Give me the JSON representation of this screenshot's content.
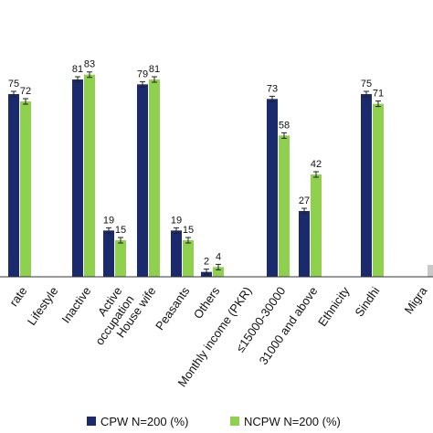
{
  "chart_data": {
    "type": "bar",
    "ylim": [
      0,
      100
    ],
    "grid": false,
    "legend_position": "bottom",
    "colors": {
      "cpw": "#1a2a6c",
      "ncpw": "#8fd14f",
      "axis": "#333333",
      "partial_bar": "#c8c8c8"
    },
    "categories": [
      "rate",
      "Lifestyle",
      "Inactive",
      "Active occupation",
      "House wife",
      "Peasants",
      "Others",
      "Monthly income (PKR)",
      "≤15000-30000",
      "31000 and above",
      "Ethnicity",
      "Sindhi",
      "Migra"
    ],
    "series": [
      {
        "name": "CPW N=200 (%)",
        "values": [
          75,
          null,
          81,
          19,
          79,
          19,
          2,
          null,
          73,
          27,
          null,
          75,
          null
        ]
      },
      {
        "name": "NCPW N=200 (%)",
        "values": [
          72,
          null,
          83,
          15,
          81,
          15,
          4,
          null,
          58,
          42,
          null,
          71,
          null
        ]
      }
    ],
    "tick_labels": [
      {
        "text": "rate"
      },
      {
        "text": "Lifestyle"
      },
      {
        "text": "Inactive"
      },
      {
        "text": "Active\noccupation"
      },
      {
        "text": "House wife"
      },
      {
        "text": "Peasants"
      },
      {
        "text": "Others"
      },
      {
        "text": "Monthly income (PKR)"
      },
      {
        "text": "≤15000-30000"
      },
      {
        "text": "31000 and above"
      },
      {
        "text": "Ethnicity"
      },
      {
        "text": "Sindhi"
      },
      {
        "text": "Migra"
      }
    ]
  }
}
